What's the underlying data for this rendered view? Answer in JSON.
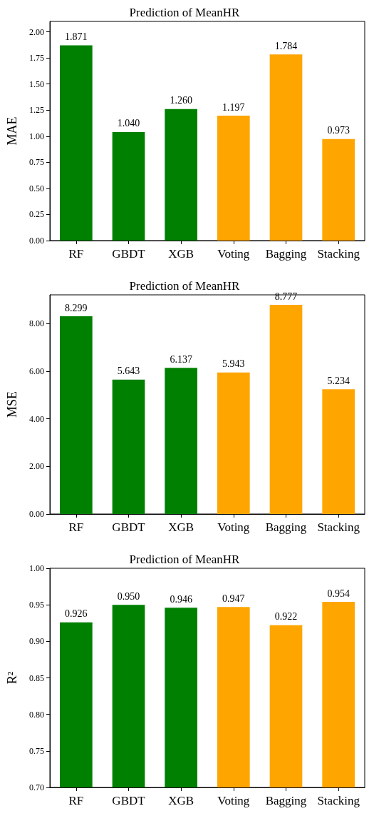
{
  "chart_data": [
    {
      "type": "bar",
      "title": "Prediction of MeanHR",
      "ylabel": "MAE",
      "categories": [
        "RF",
        "GBDT",
        "XGB",
        "Voting",
        "Bagging",
        "Stacking"
      ],
      "values": [
        1.871,
        1.04,
        1.26,
        1.197,
        1.784,
        0.973
      ],
      "value_labels": [
        "1.871",
        "1.040",
        "1.260",
        "1.197",
        "1.784",
        "0.973"
      ],
      "colors": [
        "#008000",
        "#008000",
        "#008000",
        "#ffa500",
        "#ffa500",
        "#ffa500"
      ],
      "ylim": [
        0,
        2.1
      ],
      "yticks": [
        {
          "value": 0,
          "label": "0.00"
        },
        {
          "value": 0.25,
          "label": "0.25"
        },
        {
          "value": 0.5,
          "label": "0.50"
        },
        {
          "value": 0.75,
          "label": "0.75"
        },
        {
          "value": 1,
          "label": "1.00"
        },
        {
          "value": 1.25,
          "label": "1.25"
        },
        {
          "value": 1.5,
          "label": "1.50"
        },
        {
          "value": 1.75,
          "label": "1.75"
        },
        {
          "value": 2,
          "label": "2.00"
        }
      ]
    },
    {
      "type": "bar",
      "title": "Prediction of MeanHR",
      "ylabel": "MSE",
      "categories": [
        "RF",
        "GBDT",
        "XGB",
        "Voting",
        "Bagging",
        "Stacking"
      ],
      "values": [
        8.299,
        5.643,
        6.137,
        5.943,
        8.777,
        5.234
      ],
      "value_labels": [
        "8.299",
        "5.643",
        "6.137",
        "5.943",
        "8.777",
        "5.234"
      ],
      "colors": [
        "#008000",
        "#008000",
        "#008000",
        "#ffa500",
        "#ffa500",
        "#ffa500"
      ],
      "ylim": [
        0,
        9.2
      ],
      "yticks": [
        {
          "value": 0,
          "label": "0.00"
        },
        {
          "value": 2,
          "label": "2.00"
        },
        {
          "value": 4,
          "label": "4.00"
        },
        {
          "value": 6,
          "label": "6.00"
        },
        {
          "value": 8,
          "label": "8.00"
        }
      ]
    },
    {
      "type": "bar",
      "title": "Prediction of MeanHR",
      "ylabel": "R²",
      "categories": [
        "RF",
        "GBDT",
        "XGB",
        "Voting",
        "Bagging",
        "Stacking"
      ],
      "values": [
        0.926,
        0.95,
        0.946,
        0.947,
        0.922,
        0.954
      ],
      "value_labels": [
        "0.926",
        "0.950",
        "0.946",
        "0.947",
        "0.922",
        "0.954"
      ],
      "colors": [
        "#008000",
        "#008000",
        "#008000",
        "#ffa500",
        "#ffa500",
        "#ffa500"
      ],
      "ylim": [
        0.7,
        1.0
      ],
      "yticks": [
        {
          "value": 0.7,
          "label": "0.70"
        },
        {
          "value": 0.75,
          "label": "0.75"
        },
        {
          "value": 0.8,
          "label": "0.80"
        },
        {
          "value": 0.85,
          "label": "0.85"
        },
        {
          "value": 0.9,
          "label": "0.90"
        },
        {
          "value": 0.95,
          "label": "0.95"
        },
        {
          "value": 1.0,
          "label": "1.00"
        }
      ]
    }
  ]
}
